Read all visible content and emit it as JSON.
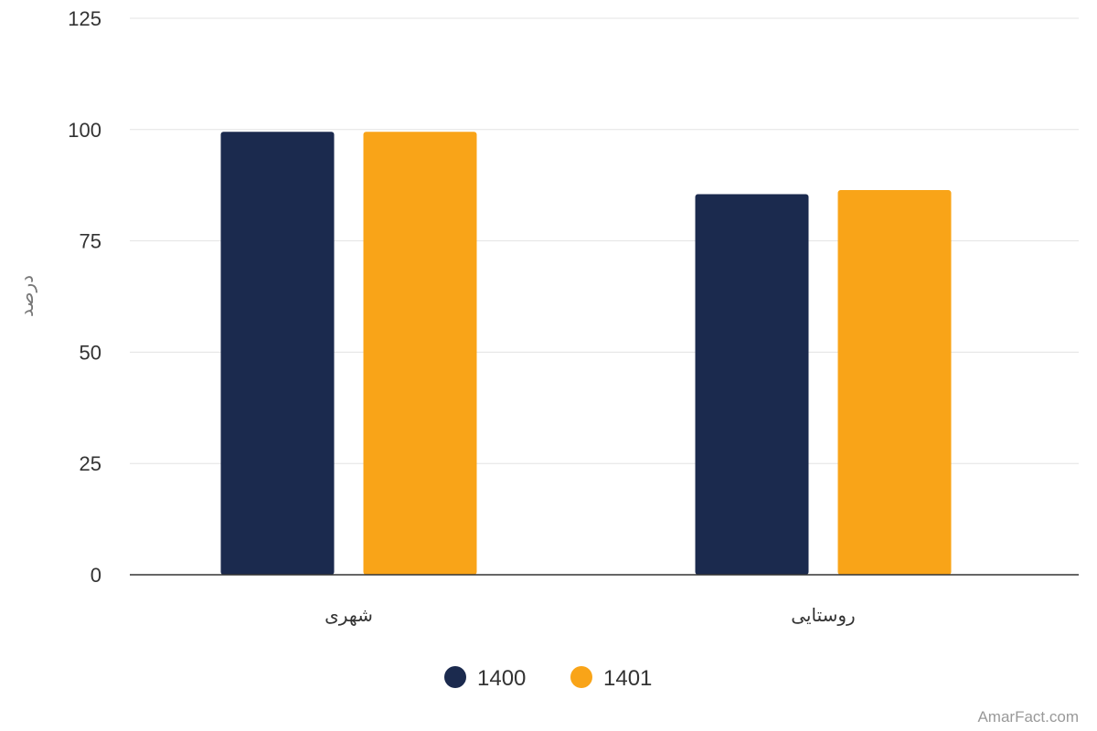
{
  "chart_data": {
    "type": "bar",
    "categories": [
      "شهری",
      "روستایی"
    ],
    "series": [
      {
        "name": "1400",
        "values": [
          99.5,
          85.5
        ],
        "color": "#1b2a4e"
      },
      {
        "name": "1401",
        "values": [
          99.5,
          86.4
        ],
        "color": "#f9a418"
      }
    ],
    "ylabel": "درصد",
    "xlabel": "",
    "ylim": [
      0,
      125
    ],
    "yticks": [
      0,
      25,
      50,
      75,
      100,
      125
    ],
    "grid": true,
    "legend": "bottom-center"
  },
  "watermark": "AmarFact.com"
}
